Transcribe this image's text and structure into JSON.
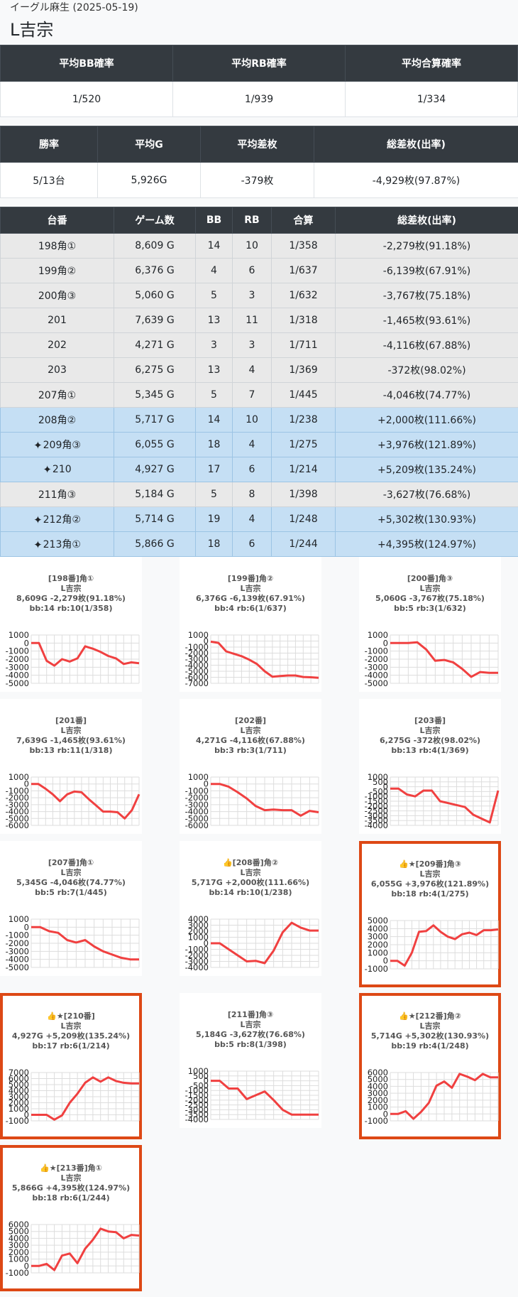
{
  "header": {
    "store": "イーグル麻生 (2025-05-19)",
    "machine": "L吉宗"
  },
  "summary1": {
    "headers": [
      "平均BB確率",
      "平均RB確率",
      "平均合算確率"
    ],
    "values": [
      "1/520",
      "1/939",
      "1/334"
    ]
  },
  "summary2": {
    "headers": [
      "勝率",
      "平均G",
      "平均差枚",
      "総差枚(出率)"
    ],
    "values": [
      "5/13台",
      "5,926G",
      "-379枚",
      "-4,929枚(97.87%)"
    ]
  },
  "machines_table": {
    "headers": [
      "台番",
      "ゲーム数",
      "BB",
      "RB",
      "合算",
      "総差枚(出率)"
    ],
    "rows": [
      {
        "no": "198角①",
        "games": "8,609 G",
        "bb": "14",
        "rb": "10",
        "total": "1/358",
        "diff": "-2,279枚(91.18%)",
        "win": false,
        "star": false
      },
      {
        "no": "199角②",
        "games": "6,376 G",
        "bb": "4",
        "rb": "6",
        "total": "1/637",
        "diff": "-6,139枚(67.91%)",
        "win": false,
        "star": false
      },
      {
        "no": "200角③",
        "games": "5,060 G",
        "bb": "5",
        "rb": "3",
        "total": "1/632",
        "diff": "-3,767枚(75.18%)",
        "win": false,
        "star": false
      },
      {
        "no": "201",
        "games": "7,639 G",
        "bb": "13",
        "rb": "11",
        "total": "1/318",
        "diff": "-1,465枚(93.61%)",
        "win": false,
        "star": false
      },
      {
        "no": "202",
        "games": "4,271 G",
        "bb": "3",
        "rb": "3",
        "total": "1/711",
        "diff": "-4,116枚(67.88%)",
        "win": false,
        "star": false
      },
      {
        "no": "203",
        "games": "6,275 G",
        "bb": "13",
        "rb": "4",
        "total": "1/369",
        "diff": "-372枚(98.02%)",
        "win": false,
        "star": false
      },
      {
        "no": "207角①",
        "games": "5,345 G",
        "bb": "5",
        "rb": "7",
        "total": "1/445",
        "diff": "-4,046枚(74.77%)",
        "win": false,
        "star": false
      },
      {
        "no": "208角②",
        "games": "5,717 G",
        "bb": "14",
        "rb": "10",
        "total": "1/238",
        "diff": "+2,000枚(111.66%)",
        "win": true,
        "star": false
      },
      {
        "no": "209角③",
        "games": "6,055 G",
        "bb": "18",
        "rb": "4",
        "total": "1/275",
        "diff": "+3,976枚(121.89%)",
        "win": true,
        "star": true
      },
      {
        "no": "210",
        "games": "4,927 G",
        "bb": "17",
        "rb": "6",
        "total": "1/214",
        "diff": "+5,209枚(135.24%)",
        "win": true,
        "star": true
      },
      {
        "no": "211角③",
        "games": "5,184 G",
        "bb": "5",
        "rb": "8",
        "total": "1/398",
        "diff": "-3,627枚(76.68%)",
        "win": false,
        "star": false
      },
      {
        "no": "212角②",
        "games": "5,714 G",
        "bb": "19",
        "rb": "4",
        "total": "1/248",
        "diff": "+5,302枚(130.93%)",
        "win": true,
        "star": true
      },
      {
        "no": "213角①",
        "games": "5,866 G",
        "bb": "18",
        "rb": "6",
        "total": "1/244",
        "diff": "+4,395枚(124.97%)",
        "win": true,
        "star": true
      }
    ]
  },
  "chart_data": [
    {
      "type": "line",
      "title": "[198番]角①",
      "info_lines": [
        "L吉宗",
        "8,609G -2,279枚(91.18%)",
        "bb:14 rb:10(1/358)"
      ],
      "highlighted": false,
      "ylim": [
        -5000,
        1000
      ],
      "yticks": [
        "1000",
        "0",
        "-1000",
        "-2000",
        "-3000",
        "-4000",
        "-5000"
      ],
      "values": [
        0,
        0,
        -2200,
        -2800,
        -2000,
        -2300,
        -1900,
        -400,
        -700,
        -1100,
        -1600,
        -1900,
        -2600,
        -2400,
        -2500
      ]
    },
    {
      "type": "line",
      "title": "[199番]角②",
      "info_lines": [
        "L吉宗",
        "6,376G -6,139枚(67.91%)",
        "bb:4 rb:6(1/637)"
      ],
      "highlighted": false,
      "ylim": [
        -7000,
        1000
      ],
      "yticks": [
        "1000",
        "0",
        "-1000",
        "-2000",
        "-3000",
        "-4000",
        "-5000",
        "-6000",
        "-7000"
      ],
      "values": [
        -100,
        -300,
        -1700,
        -2100,
        -2500,
        -3100,
        -3800,
        -5000,
        -5900,
        -5800,
        -5700,
        -5700,
        -5950,
        -6000,
        -6100
      ]
    },
    {
      "type": "line",
      "title": "[200番]角③",
      "info_lines": [
        "L吉宗",
        "5,060G -3,767枚(75.18%)",
        "bb:5 rb:3(1/632)"
      ],
      "highlighted": false,
      "ylim": [
        -5000,
        1000
      ],
      "yticks": [
        "1000",
        "0",
        "-1000",
        "-2000",
        "-3000",
        "-4000",
        "-5000"
      ],
      "values": [
        0,
        0,
        0,
        100,
        -800,
        -2200,
        -2100,
        -2400,
        -3200,
        -4200,
        -3600,
        -3700,
        -3700
      ]
    },
    {
      "type": "line",
      "title": "[201番]",
      "info_lines": [
        "L吉宗",
        "7,639G -1,465枚(93.61%)",
        "bb:13 rb:11(1/318)"
      ],
      "highlighted": false,
      "ylim": [
        -6000,
        1000
      ],
      "yticks": [
        "1000",
        "0",
        "-1000",
        "-2000",
        "-3000",
        "-4000",
        "-5000",
        "-6000"
      ],
      "values": [
        0,
        0,
        -700,
        -1500,
        -2500,
        -1500,
        -1100,
        -1200,
        -2200,
        -3100,
        -4000,
        -4000,
        -4100,
        -5000,
        -3800,
        -1500
      ]
    },
    {
      "type": "line",
      "title": "[202番]",
      "info_lines": [
        "L吉宗",
        "4,271G -4,116枚(67.88%)",
        "bb:3 rb:3(1/711)"
      ],
      "highlighted": false,
      "ylim": [
        -6000,
        1000
      ],
      "yticks": [
        "1000",
        "0",
        "-1000",
        "-2000",
        "-3000",
        "-4000",
        "-5000",
        "-6000"
      ],
      "values": [
        0,
        0,
        -400,
        -1200,
        -2100,
        -3200,
        -3800,
        -3700,
        -3800,
        -3800,
        -4600,
        -3900,
        -4100
      ]
    },
    {
      "type": "line",
      "title": "[203番]",
      "info_lines": [
        "L吉宗",
        "6,275G -372枚(98.02%)",
        "bb:13 rb:4(1/369)"
      ],
      "highlighted": false,
      "ylim": [
        -4000,
        1000
      ],
      "yticks": [
        "1000",
        "500",
        "0",
        "-500",
        "-1000",
        "-1500",
        "-2000",
        "-2500",
        "-3000",
        "-3500",
        "-4000"
      ],
      "values": [
        -200,
        -200,
        -800,
        -1000,
        -400,
        -400,
        -1500,
        -1700,
        -1900,
        -2100,
        -2900,
        -3300,
        -3700,
        -400
      ]
    },
    {
      "type": "line",
      "title": "[207番]角①",
      "info_lines": [
        "L吉宗",
        "5,345G -4,046枚(74.77%)",
        "bb:5 rb:7(1/445)"
      ],
      "highlighted": false,
      "ylim": [
        -5000,
        1000
      ],
      "yticks": [
        "1000",
        "0",
        "-1000",
        "-2000",
        "-3000",
        "-4000",
        "-5000"
      ],
      "values": [
        0,
        0,
        -500,
        -700,
        -1600,
        -1900,
        -1600,
        -2400,
        -3000,
        -3400,
        -3800,
        -4000,
        -4000
      ]
    },
    {
      "type": "line",
      "title": "👍[208番]角②",
      "info_lines": [
        "L吉宗",
        "5,717G +2,000枚(111.66%)",
        "bb:14 rb:10(1/238)"
      ],
      "highlighted": false,
      "ylim": [
        -4000,
        4000
      ],
      "yticks": [
        "4000",
        "3000",
        "2000",
        "1000",
        "0",
        "-1000",
        "-2000",
        "-3000",
        "-4000"
      ],
      "values": [
        0,
        0,
        -1000,
        -2000,
        -3000,
        -2900,
        -3300,
        -1200,
        1800,
        3400,
        2600,
        2100,
        2100
      ]
    },
    {
      "type": "line",
      "title": "👍★[209番]角③",
      "info_lines": [
        "L吉宗",
        "6,055G +3,976枚(121.89%)",
        "bb:18 rb:4(1/275)"
      ],
      "highlighted": true,
      "ylim": [
        -1000,
        5000
      ],
      "yticks": [
        "5000",
        "4000",
        "3000",
        "2000",
        "1000",
        "0",
        "-1000"
      ],
      "values": [
        0,
        0,
        -600,
        1000,
        3600,
        3700,
        4400,
        3600,
        3000,
        2700,
        3300,
        3500,
        3200,
        3800,
        3800,
        3900
      ]
    },
    {
      "type": "line",
      "title": "👍★[210番]",
      "info_lines": [
        "L吉宗",
        "4,927G +5,209枚(135.24%)",
        "bb:17 rb:6(1/214)"
      ],
      "highlighted": true,
      "ylim": [
        -1000,
        7000
      ],
      "yticks": [
        "7000",
        "6000",
        "5000",
        "4000",
        "3000",
        "2000",
        "1000",
        "0",
        "-1000"
      ],
      "values": [
        0,
        0,
        0,
        -800,
        -100,
        2000,
        3500,
        5300,
        6200,
        5500,
        6200,
        5600,
        5300,
        5200,
        5200
      ]
    },
    {
      "type": "line",
      "title": "[211番]角③",
      "info_lines": [
        "L吉宗",
        "5,184G -3,627枚(76.68%)",
        "bb:5 rb:8(1/398)"
      ],
      "highlighted": false,
      "ylim": [
        -4000,
        1000
      ],
      "yticks": [
        "1000",
        "500",
        "0",
        "-500",
        "-1000",
        "-1500",
        "-2000",
        "-2500",
        "-3000",
        "-3500",
        "-4000"
      ],
      "values": [
        0,
        0,
        -800,
        -800,
        -1900,
        -1500,
        -1100,
        -2000,
        -3000,
        -3500,
        -3500,
        -3500,
        -3500
      ]
    },
    {
      "type": "line",
      "title": "👍★[212番]角②",
      "info_lines": [
        "L吉宗",
        "5,714G +5,302枚(130.93%)",
        "bb:19 rb:4(1/248)"
      ],
      "highlighted": true,
      "ylim": [
        -1000,
        6000
      ],
      "yticks": [
        "6000",
        "5000",
        "4000",
        "3000",
        "2000",
        "1000",
        "0",
        "-1000"
      ],
      "values": [
        0,
        0,
        400,
        -700,
        300,
        1600,
        4100,
        4700,
        3800,
        5800,
        5400,
        4900,
        5800,
        5300,
        5300
      ]
    },
    {
      "type": "line",
      "title": "👍★[213番]角①",
      "info_lines": [
        "L吉宗",
        "5,866G +4,395枚(124.97%)",
        "bb:18 rb:6(1/244)"
      ],
      "highlighted": true,
      "ylim": [
        -1000,
        6000
      ],
      "yticks": [
        "6000",
        "5000",
        "4000",
        "3000",
        "2000",
        "1000",
        "0",
        "-1000"
      ],
      "values": [
        0,
        0,
        300,
        -600,
        1500,
        1800,
        400,
        2500,
        3800,
        5400,
        5000,
        4900,
        4000,
        4500,
        4400
      ]
    }
  ],
  "icons": {
    "sparkle": "sparkle-icon",
    "thumbs_up": "thumbs-up-icon",
    "star": "star-icon"
  },
  "colors": {
    "header_bg": "#343a40",
    "win_row": "#c5dff4",
    "lose_row": "#e9e9e9",
    "line": "#f04040",
    "highlight_border": "#dd4815"
  }
}
